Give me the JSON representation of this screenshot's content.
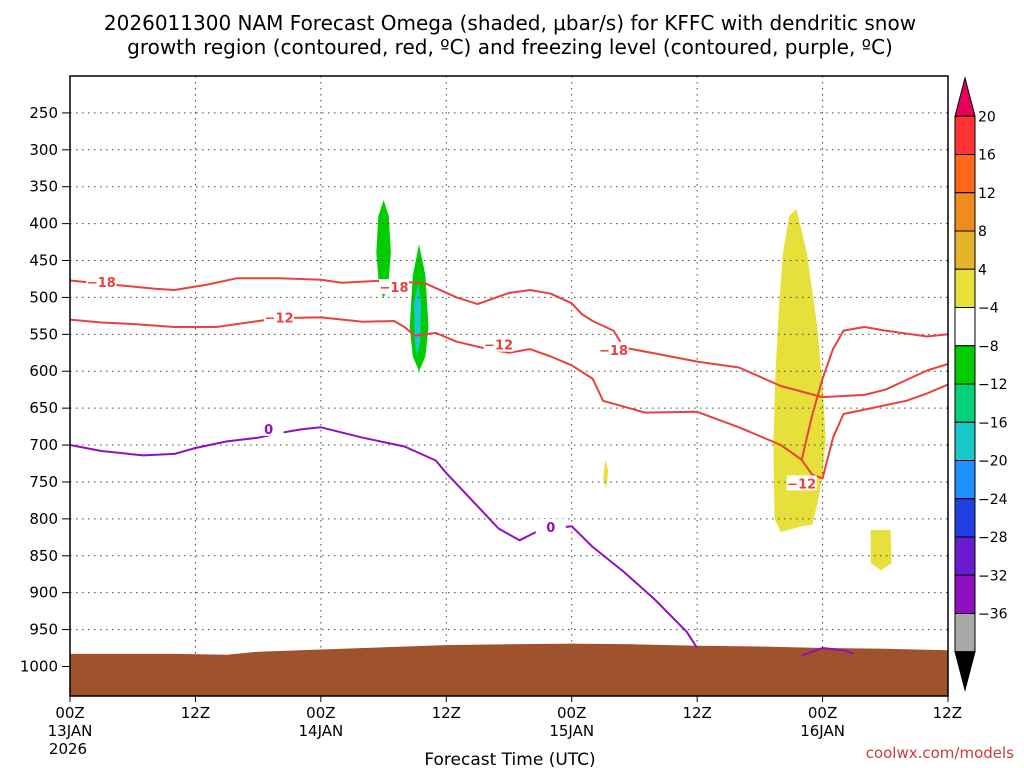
{
  "chart_data": {
    "type": "heatmap",
    "title_line1": "2026011300 NAM Forecast Omega (shaded, μbar/s) for KFFC with dendritic snow",
    "title_line2": "growth region (contoured, red, ºC) and freezing level (contoured, purple, ºC)",
    "xlabel": "Forecast Time (UTC)",
    "ylabel": "",
    "x_unit": "forecast hour",
    "xlim": [
      0,
      84
    ],
    "y_unit": "pressure (hPa)",
    "ylim": [
      1040,
      200
    ],
    "y_ticks": [
      250,
      300,
      350,
      400,
      450,
      500,
      550,
      600,
      650,
      700,
      750,
      800,
      850,
      900,
      950,
      1000
    ],
    "x_ticks": [
      {
        "hour": 0,
        "line1": "00Z",
        "line2": "13JAN",
        "line3": "2026"
      },
      {
        "hour": 12,
        "line1": "12Z",
        "line2": "",
        "line3": ""
      },
      {
        "hour": 24,
        "line1": "00Z",
        "line2": "14JAN",
        "line3": ""
      },
      {
        "hour": 36,
        "line1": "12Z",
        "line2": "",
        "line3": ""
      },
      {
        "hour": 48,
        "line1": "00Z",
        "line2": "15JAN",
        "line3": ""
      },
      {
        "hour": 60,
        "line1": "12Z",
        "line2": "",
        "line3": ""
      },
      {
        "hour": 72,
        "line1": "00Z",
        "line2": "16JAN",
        "line3": ""
      },
      {
        "hour": 84,
        "line1": "12Z",
        "line2": "",
        "line3": ""
      }
    ],
    "grid": true,
    "colorbar": {
      "levels": [
        "20",
        "16",
        "12",
        "8",
        "4",
        "−4",
        "−8",
        "−12",
        "−16",
        "−20",
        "−24",
        "−28",
        "−32",
        "−36"
      ],
      "colors": [
        "#e6005c",
        "#ff3333",
        "#ff6a1a",
        "#f08c1e",
        "#e6b429",
        "#e8e03a",
        "#ffffff",
        "#00cc00",
        "#00d17a",
        "#19c8c8",
        "#1e90ff",
        "#1f3fe0",
        "#6a1bd1",
        "#9010c0",
        "#a8a8a8",
        "#000000"
      ]
    },
    "series": [
      {
        "name": "-18 isotherm",
        "label": "−18",
        "color": "#e8423c",
        "segments": [
          [
            [
              0,
              477
            ],
            [
              8,
              488
            ],
            [
              10,
              490
            ],
            [
              13,
              483
            ],
            [
              16,
              474
            ],
            [
              20,
              474
            ],
            [
              24,
              476
            ],
            [
              26,
              480
            ],
            [
              30,
              477
            ],
            [
              34,
              481
            ],
            [
              37,
              500
            ],
            [
              39,
              509
            ],
            [
              42,
              494
            ],
            [
              44,
              490
            ],
            [
              46,
              495
            ],
            [
              48,
              508
            ],
            [
              49,
              523
            ],
            [
              50,
              532
            ],
            [
              52,
              545
            ],
            [
              53,
              568
            ],
            [
              56,
              576
            ],
            [
              60,
              587
            ],
            [
              64,
              595
            ],
            [
              68,
              620
            ],
            [
              72,
              635
            ],
            [
              76,
              632
            ],
            [
              78,
              625
            ],
            [
              82,
              599
            ],
            [
              84,
              590
            ]
          ]
        ],
        "label_at": [
          [
            3,
            479
          ],
          [
            31,
            486
          ],
          [
            52,
            571
          ]
        ]
      },
      {
        "name": "-12 isotherm",
        "label": "−12",
        "color": "#e8423c",
        "segments": [
          [
            [
              0,
              530
            ],
            [
              3,
              534
            ],
            [
              6,
              536
            ],
            [
              10,
              540
            ],
            [
              14,
              540
            ],
            [
              20,
              528
            ],
            [
              24,
              527
            ],
            [
              28,
              533
            ],
            [
              31,
              532
            ],
            [
              32,
              540
            ],
            [
              33,
              552
            ],
            [
              35,
              548
            ],
            [
              37,
              560
            ],
            [
              40,
              570
            ],
            [
              42,
              575
            ],
            [
              44,
              570
            ],
            [
              46,
              580
            ],
            [
              48,
              592
            ],
            [
              50,
              610
            ],
            [
              51,
              640
            ],
            [
              55,
              656
            ],
            [
              60,
              655
            ],
            [
              64,
              676
            ],
            [
              68,
              700
            ],
            [
              70,
              720
            ],
            [
              71,
              740
            ],
            [
              72,
              745
            ],
            [
              73,
              690
            ],
            [
              74,
              658
            ],
            [
              76,
              652
            ],
            [
              80,
              640
            ],
            [
              82,
              630
            ],
            [
              84,
              618
            ]
          ],
          [
            [
              70,
              720
            ],
            [
              71,
              660
            ],
            [
              72,
              610
            ],
            [
              73,
              570
            ],
            [
              74,
              545
            ],
            [
              76,
              540
            ],
            [
              78,
              545
            ],
            [
              82,
              553
            ],
            [
              84,
              550
            ]
          ]
        ],
        "label_at": [
          [
            20,
            527
          ],
          [
            41,
            564
          ],
          [
            70,
            752
          ]
        ]
      },
      {
        "name": "0 freezing level",
        "label": "0",
        "color": "#9010c0",
        "segments": [
          [
            [
              0,
              700
            ],
            [
              3,
              708
            ],
            [
              7,
              714
            ],
            [
              10,
              712
            ],
            [
              12,
              704
            ],
            [
              15,
              695
            ],
            [
              18,
              690
            ],
            [
              20,
              684
            ],
            [
              22,
              679
            ],
            [
              24,
              676
            ],
            [
              28,
              690
            ],
            [
              32,
              702
            ],
            [
              35,
              721
            ],
            [
              36,
              738
            ],
            [
              38,
              768
            ],
            [
              41,
              813
            ],
            [
              43,
              829
            ],
            [
              45,
              815
            ],
            [
              48,
              810
            ],
            [
              50,
              838
            ],
            [
              53,
              872
            ],
            [
              56,
              910
            ],
            [
              59,
              953
            ],
            [
              60,
              975
            ]
          ],
          [
            [
              70,
              985
            ],
            [
              72,
              975
            ],
            [
              74,
              978
            ],
            [
              75,
              983
            ]
          ]
        ],
        "label_at": [
          [
            19,
            678
          ],
          [
            46,
            811
          ]
        ]
      }
    ],
    "shaded_regions": [
      {
        "name": "omega green band 1",
        "value": "−4 to −8",
        "color": "#00cc00",
        "outline": [
          [
            30.0,
            368
          ],
          [
            30.5,
            390
          ],
          [
            30.7,
            440
          ],
          [
            30.4,
            490
          ],
          [
            30.0,
            500
          ],
          [
            29.6,
            490
          ],
          [
            29.3,
            440
          ],
          [
            29.5,
            390
          ]
        ]
      },
      {
        "name": "omega green band 2",
        "value": "−4 to −8",
        "color": "#00cc00",
        "outline": [
          [
            33.4,
            428
          ],
          [
            34.0,
            470
          ],
          [
            34.3,
            540
          ],
          [
            34.0,
            580
          ],
          [
            33.4,
            600
          ],
          [
            32.8,
            580
          ],
          [
            32.5,
            540
          ],
          [
            32.8,
            470
          ]
        ]
      },
      {
        "name": "omega cyan core",
        "value": "−8 to −12",
        "color": "#19c8c8",
        "outline": [
          [
            33.3,
            480
          ],
          [
            33.6,
            510
          ],
          [
            33.5,
            560
          ],
          [
            33.2,
            580
          ],
          [
            33.0,
            560
          ],
          [
            32.9,
            510
          ]
        ]
      },
      {
        "name": "omega yellow tower",
        "value": "4 to 8",
        "color": "#e8e03a",
        "outline": [
          [
            69.5,
            380
          ],
          [
            70.5,
            440
          ],
          [
            71.5,
            540
          ],
          [
            72.0,
            620
          ],
          [
            72.3,
            690
          ],
          [
            72.0,
            740
          ],
          [
            71.5,
            780
          ],
          [
            71.0,
            808
          ],
          [
            70.0,
            810
          ],
          [
            68.0,
            818
          ],
          [
            67.4,
            800
          ],
          [
            67.3,
            700
          ],
          [
            67.5,
            600
          ],
          [
            67.8,
            520
          ],
          [
            68.2,
            440
          ],
          [
            68.8,
            390
          ]
        ]
      },
      {
        "name": "omega yellow small blob",
        "value": "4 to 8",
        "color": "#e8e03a",
        "outline": [
          [
            76.6,
            815
          ],
          [
            78.5,
            815
          ],
          [
            78.6,
            860
          ],
          [
            77.6,
            870
          ],
          [
            76.6,
            860
          ]
        ]
      },
      {
        "name": "omega yellow sliver",
        "value": "4 to 8",
        "color": "#e8e03a",
        "outline": [
          [
            51.2,
            720
          ],
          [
            51.5,
            735
          ],
          [
            51.3,
            760
          ],
          [
            51.0,
            745
          ]
        ]
      }
    ],
    "terrain": {
      "name": "surface",
      "color": "#a0522d",
      "top": [
        [
          0,
          983
        ],
        [
          10,
          983
        ],
        [
          15,
          984
        ],
        [
          18,
          980
        ],
        [
          24,
          977
        ],
        [
          30,
          974
        ],
        [
          36,
          971
        ],
        [
          42,
          970
        ],
        [
          48,
          969
        ],
        [
          54,
          970
        ],
        [
          60,
          972
        ],
        [
          66,
          973
        ],
        [
          72,
          975
        ],
        [
          78,
          976
        ],
        [
          84,
          978
        ]
      ]
    }
  },
  "watermark": "coolwx.com/models"
}
